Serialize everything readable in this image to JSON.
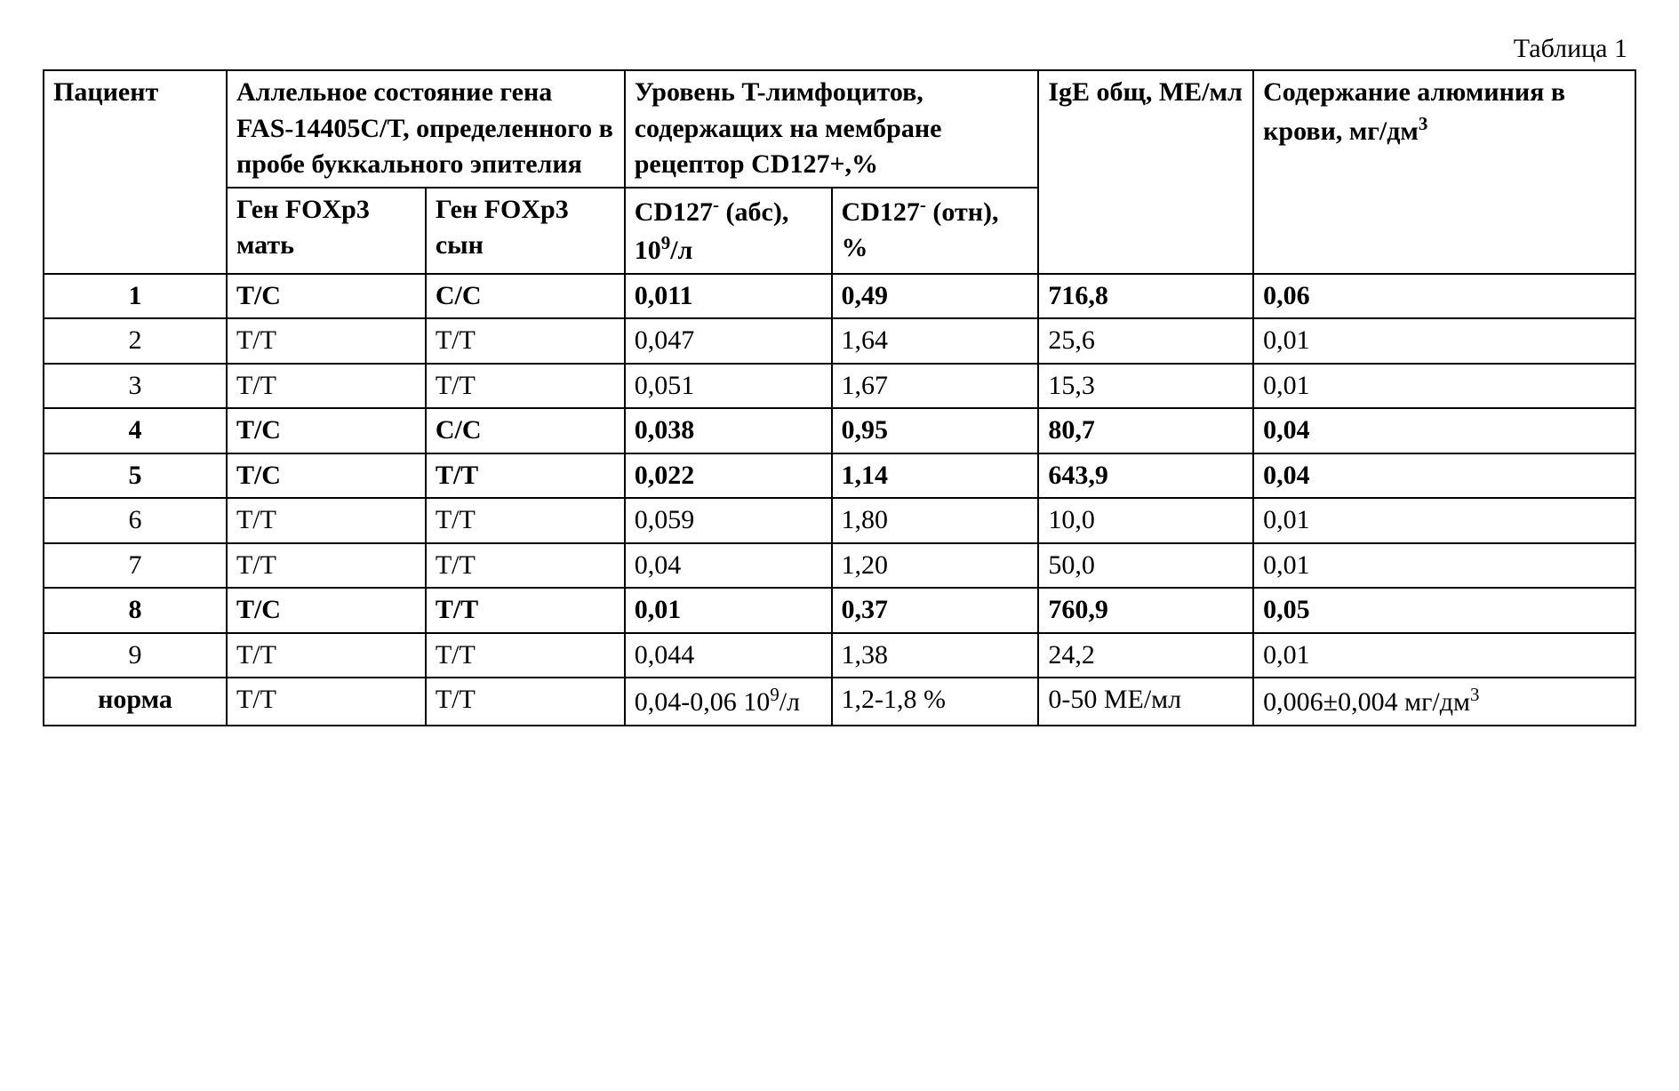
{
  "caption": "Таблица 1",
  "headers": {
    "patient": "Пациент",
    "allelic_state": "Аллельное состояние гена FAS-14405C/T, определенного в пробе буккального эпителия",
    "t_lymph": "Уровень T-лимфоцитов, содержащих на мембране рецептор CD127+,%",
    "ige": "IgE общ, МЕ/мл",
    "aluminum_prefix": "Содержание алюминия в крови, мг/дм",
    "aluminum_sup": "3",
    "foxp3_mother": "Ген FOXp3 мать",
    "foxp3_son": "Ген FOXp3 сын",
    "cd127_abs_prefix": "CD127",
    "cd127_abs_mid": " (абс), 10",
    "cd127_abs_sup": "9",
    "cd127_abs_suffix": "/л",
    "cd127_rel_prefix": "CD127",
    "cd127_rel_suffix": " (отн), %",
    "minus": "-"
  },
  "rows": [
    {
      "bold": true,
      "patient": "1",
      "mother": "T/C",
      "son": "C/C",
      "abs": "0,011",
      "rel": "0,49",
      "ige": "716,8",
      "al": "0,06"
    },
    {
      "bold": false,
      "patient": "2",
      "mother": "T/T",
      "son": "T/T",
      "abs": "0,047",
      "rel": "1,64",
      "ige": "25,6",
      "al": "0,01"
    },
    {
      "bold": false,
      "patient": "3",
      "mother": "T/T",
      "son": "T/T",
      "abs": "0,051",
      "rel": "1,67",
      "ige": "15,3",
      "al": "0,01"
    },
    {
      "bold": true,
      "patient": "4",
      "mother": "T/C",
      "son": "C/C",
      "abs": "0,038",
      "rel": "0,95",
      "ige": "80,7",
      "al": "0,04"
    },
    {
      "bold": true,
      "patient": "5",
      "mother": "T/C",
      "son": "T/T",
      "abs": "0,022",
      "rel": "1,14",
      "ige": "643,9",
      "al": "0,04"
    },
    {
      "bold": false,
      "patient": "6",
      "mother": "T/T",
      "son": "T/T",
      "abs": "0,059",
      "rel": "1,80",
      "ige": "10,0",
      "al": "0,01"
    },
    {
      "bold": false,
      "patient": "7",
      "mother": "T/T",
      "son": "T/T",
      "abs": "0,04",
      "rel": "1,20",
      "ige": "50,0",
      "al": "0,01"
    },
    {
      "bold": true,
      "patient": "8",
      "mother": "T/C",
      "son": "T/T",
      "abs": "0,01",
      "rel": "0,37",
      "ige": "760,9",
      "al": "0,05"
    },
    {
      "bold": false,
      "patient": "9",
      "mother": "T/T",
      "son": "T/T",
      "abs": "0,044",
      "rel": "1,38",
      "ige": "24,2",
      "al": "0,01"
    }
  ],
  "norm": {
    "label": "норма",
    "mother": "T/T",
    "son": "T/T",
    "abs_prefix": "0,04-0,06 10",
    "abs_sup": "9",
    "abs_suffix": "/л",
    "rel": "1,2-1,8 %",
    "ige": "0-50 МЕ/мл",
    "al_prefix": "0,006±0,004 мг/дм",
    "al_sup": "3"
  }
}
